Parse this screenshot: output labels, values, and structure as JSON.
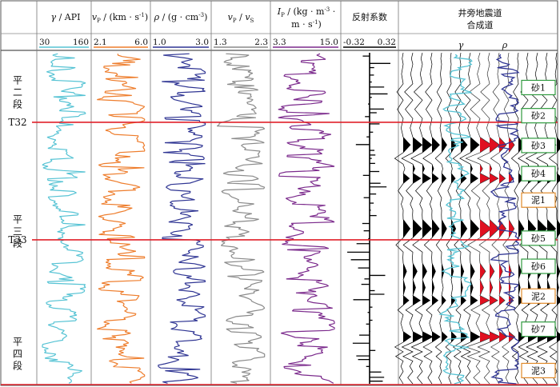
{
  "chart_data": {
    "type": "well-log",
    "title": "",
    "depth_axis": [
      0,
      100
    ],
    "zone_labels": [
      {
        "text": "平二段",
        "lines": [
          "平",
          "二",
          "段"
        ],
        "depth": 12
      },
      {
        "text": "平三段",
        "lines": [
          "平",
          "三",
          "段"
        ],
        "depth": 54
      },
      {
        "text": "平四段",
        "lines": [
          "平",
          "四",
          "段"
        ],
        "depth": 91
      }
    ],
    "markers": [
      {
        "name": "T32",
        "depth": 21
      },
      {
        "name": "T33",
        "depth": 56.5
      }
    ],
    "tracks": [
      {
        "key": "gr",
        "label": "γ / API",
        "min": "30",
        "max": "160",
        "range": [
          30,
          160
        ],
        "color": "#56c3d4",
        "seed": 11
      },
      {
        "key": "vp",
        "label": "vP / (km·s⁻¹)",
        "min": "2.1",
        "max": "6.0",
        "range": [
          2.1,
          6.0
        ],
        "color": "#ee7d2c",
        "seed": 23
      },
      {
        "key": "rho",
        "label": "ρ / (g·cm⁻³)",
        "min": "1.0",
        "max": "3.0",
        "range": [
          1.0,
          3.0
        ],
        "color": "#2f3593",
        "seed": 37
      },
      {
        "key": "vpvs",
        "label": "vP / vS",
        "min": "1.3",
        "max": "2.3",
        "range": [
          1.3,
          2.3
        ],
        "color": "#8a8a8a",
        "seed": 53
      },
      {
        "key": "ip",
        "label": "IP / (kg·m⁻³·m·s⁻¹)",
        "min": "3.3",
        "max": "15.0",
        "range": [
          3.3,
          15.0
        ],
        "color": "#7b2a8c",
        "seed": 71
      },
      {
        "key": "rc",
        "label": "反射系数",
        "min": "-0.32",
        "max": "0.32",
        "range": [
          -0.32,
          0.32
        ],
        "color": "#000000",
        "seed": 89
      }
    ],
    "seismic": {
      "title_line1": "井旁地震道",
      "title_line2": "合成道",
      "gamma_label": "γ",
      "rho_label": "ρ",
      "seed": 101
    },
    "lithology_labels": [
      {
        "text": "砂1",
        "depth": 10.5,
        "type": "sand"
      },
      {
        "text": "砂2",
        "depth": 19,
        "type": "sand"
      },
      {
        "text": "砂3",
        "depth": 28,
        "type": "sand"
      },
      {
        "text": "砂4",
        "depth": 36.5,
        "type": "sand"
      },
      {
        "text": "泥1",
        "depth": 44.5,
        "type": "mud"
      },
      {
        "text": "砂5",
        "depth": 56,
        "type": "sand"
      },
      {
        "text": "砂6",
        "depth": 64.5,
        "type": "sand"
      },
      {
        "text": "泥2",
        "depth": 73.5,
        "type": "mud"
      },
      {
        "text": "砂7",
        "depth": 83.5,
        "type": "sand"
      },
      {
        "text": "泥3",
        "depth": 96,
        "type": "mud"
      }
    ],
    "colors": {
      "marker": "#e0202a",
      "sand_box": "#2e9a3e",
      "mud_box": "#e08a2a",
      "synthetic_fill": "#e01020",
      "grid": "#888888"
    }
  }
}
